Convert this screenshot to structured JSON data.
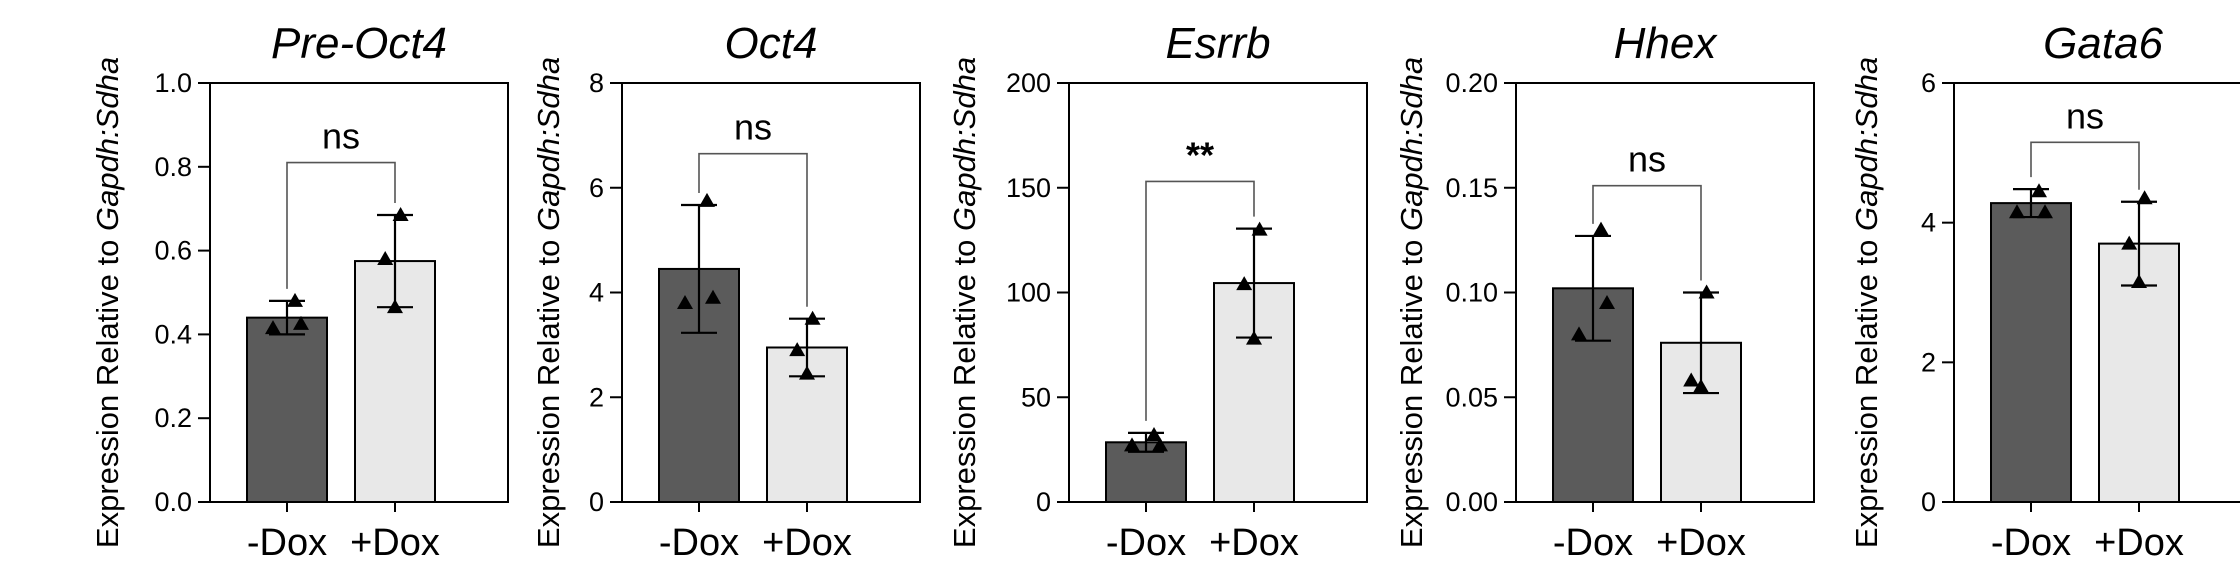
{
  "chart_data": [
    {
      "type": "bar",
      "title": "Pre-Oct4",
      "ylabel_prefix": "Expression Relative to ",
      "ylabel_italic": "Gapdh:Sdha",
      "categories": [
        "-Dox",
        "+Dox"
      ],
      "values": [
        0.44,
        0.575
      ],
      "error": [
        0.04,
        0.11
      ],
      "points": [
        [
          0.415,
          0.48,
          0.425
        ],
        [
          0.465,
          0.685,
          0.58
        ]
      ],
      "ylim": [
        0,
        1.0
      ],
      "yticks": [
        "0.0",
        "0.2",
        "0.4",
        "0.6",
        "0.8",
        "1.0"
      ],
      "ytick_values": [
        0,
        0.2,
        0.4,
        0.6,
        0.8,
        1.0
      ],
      "significance": "ns",
      "bracket_level": 0.81
    },
    {
      "type": "bar",
      "title": "Oct4",
      "ylabel_prefix": "Expression Relative to ",
      "ylabel_italic": "Gapdh:Sdha",
      "categories": [
        "-Dox",
        "+Dox"
      ],
      "values": [
        4.45,
        2.95
      ],
      "error": [
        1.22,
        0.55
      ],
      "points": [
        [
          3.8,
          5.75,
          3.9
        ],
        [
          2.45,
          3.5,
          2.9
        ]
      ],
      "ylim": [
        0,
        8
      ],
      "yticks": [
        "0",
        "2",
        "4",
        "6",
        "8"
      ],
      "ytick_values": [
        0,
        2,
        4,
        6,
        8
      ],
      "significance": "ns",
      "bracket_level": 6.65
    },
    {
      "type": "bar",
      "title": "Esrrb",
      "ylabel_prefix": "Expression Relative to ",
      "ylabel_italic": "Gapdh:Sdha",
      "categories": [
        "-Dox",
        "+Dox"
      ],
      "values": [
        28.5,
        104.5
      ],
      "error": [
        4.5,
        26
      ],
      "points": [
        [
          27,
          32,
          27
        ],
        [
          78,
          130,
          104
        ]
      ],
      "ylim": [
        0,
        200
      ],
      "yticks": [
        "0",
        "50",
        "100",
        "150",
        "200"
      ],
      "ytick_values": [
        0,
        50,
        100,
        150,
        200
      ],
      "significance": "**",
      "bracket_level": 153
    },
    {
      "type": "bar",
      "title": "Hhex",
      "ylabel_prefix": "Expression Relative to ",
      "ylabel_italic": "Gapdh:Sdha",
      "categories": [
        "-Dox",
        "+Dox"
      ],
      "values": [
        0.102,
        0.076
      ],
      "error": [
        0.025,
        0.024
      ],
      "points": [
        [
          0.08,
          0.13,
          0.095
        ],
        [
          0.055,
          0.1,
          0.058
        ]
      ],
      "ylim": [
        0,
        0.2
      ],
      "yticks": [
        "0.00",
        "0.05",
        "0.10",
        "0.15",
        "0.20"
      ],
      "ytick_values": [
        0,
        0.05,
        0.1,
        0.15,
        0.2
      ],
      "significance": "ns",
      "bracket_level": 0.151
    },
    {
      "type": "bar",
      "title": "Gata6",
      "ylabel_prefix": "Expression Relative to ",
      "ylabel_italic": "Gapdh:Sdha",
      "categories": [
        "-Dox",
        "+Dox"
      ],
      "values": [
        4.28,
        3.7
      ],
      "error": [
        0.2,
        0.6
      ],
      "points": [
        [
          4.15,
          4.45,
          4.15
        ],
        [
          3.15,
          4.35,
          3.7
        ]
      ],
      "ylim": [
        0,
        6
      ],
      "yticks": [
        "0",
        "2",
        "4",
        "6"
      ],
      "ytick_values": [
        0,
        2,
        4,
        6
      ],
      "significance": "ns",
      "bracket_level": 5.15
    }
  ],
  "colors": {
    "minus_dox": "#5b5b5b",
    "plus_dox": "#e8e8e8"
  }
}
